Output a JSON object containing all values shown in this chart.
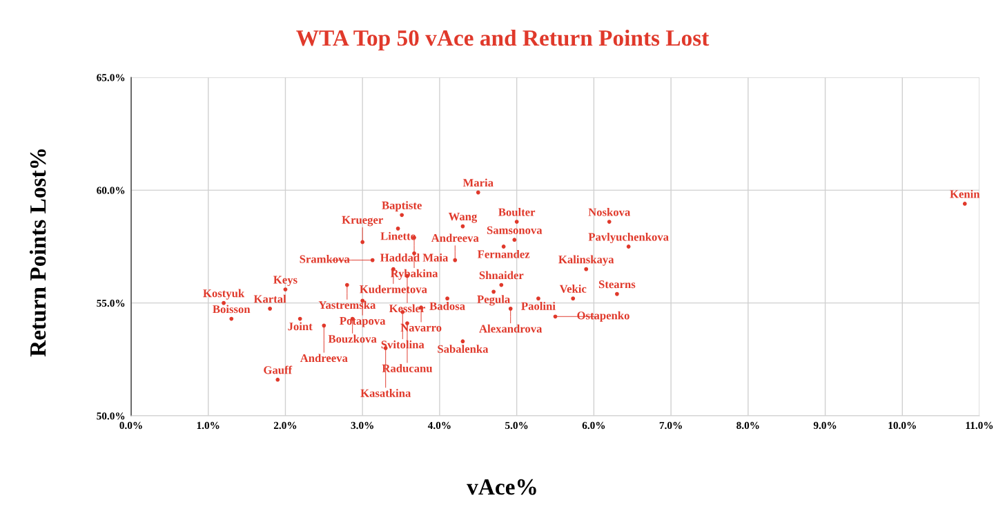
{
  "chart_data": {
    "type": "scatter",
    "title": "WTA Top 50 vAce and Return Points Lost",
    "xlabel": "vAce%",
    "ylabel": "Return Points Lost%",
    "xlim": [
      0,
      11
    ],
    "ylim": [
      50,
      65
    ],
    "xticks": [
      {
        "value": 0,
        "label": "0.0%"
      },
      {
        "value": 1,
        "label": "1.0%"
      },
      {
        "value": 2,
        "label": "2.0%"
      },
      {
        "value": 3,
        "label": "3.0%"
      },
      {
        "value": 4,
        "label": "4.0%"
      },
      {
        "value": 5,
        "label": "5.0%"
      },
      {
        "value": 6,
        "label": "6.0%"
      },
      {
        "value": 7,
        "label": "7.0%"
      },
      {
        "value": 8,
        "label": "8.0%"
      },
      {
        "value": 9,
        "label": "9.0%"
      },
      {
        "value": 10,
        "label": "10.0%"
      },
      {
        "value": 11,
        "label": "11.0%"
      }
    ],
    "yticks": [
      {
        "value": 50,
        "label": "50.0%"
      },
      {
        "value": 55,
        "label": "55.0%"
      },
      {
        "value": 60,
        "label": "60.0%"
      },
      {
        "value": 65,
        "label": "65.0%"
      }
    ],
    "grid": true,
    "legend": false,
    "marker": "circle",
    "series": [
      {
        "color": "#e0392b",
        "x": [
          4.5,
          10.81,
          3.51,
          5.0,
          6.2,
          3.46,
          4.3,
          3.67,
          4.97,
          3.0,
          4.83,
          6.45,
          3.67,
          3.13,
          4.2,
          5.9,
          3.4,
          3.58,
          2.8,
          2.0,
          4.8,
          4.7,
          6.3,
          5.28,
          5.73,
          4.1,
          3.0,
          1.2,
          1.8,
          3.76,
          4.92,
          3.52,
          5.5,
          1.3,
          2.19,
          2.87,
          2.5,
          3.58,
          4.3,
          3.3,
          1.9
        ],
        "values": [
          59.9,
          59.4,
          58.9,
          58.6,
          58.6,
          58.3,
          58.4,
          57.9,
          57.8,
          57.7,
          57.5,
          57.5,
          57.2,
          56.9,
          56.9,
          56.5,
          56.5,
          56.2,
          55.8,
          55.6,
          55.8,
          55.5,
          55.4,
          55.2,
          55.2,
          55.2,
          55.1,
          55.0,
          54.75,
          54.8,
          54.75,
          54.6,
          54.4,
          54.3,
          54.3,
          54.3,
          54.0,
          54.1,
          53.3,
          53.0,
          51.6
        ],
        "value_labels": [
          "Maria",
          "Kenin",
          "Baptiste",
          "Boulter",
          "Noskova",
          "Linette",
          "Wang",
          "Haddad Maia",
          "Samsonova",
          "Krueger",
          "Fernandez",
          "Pavlyuchenkova",
          "Rybakina",
          "Sramkova",
          "Andreeva",
          "Kalinskaya",
          "Kudermetova",
          "Kessler",
          "Yastremska",
          "Keys",
          "Shnaider",
          "Pegula",
          "Stearns",
          "Paolini",
          "Vekic",
          "Badosa",
          "Potapova",
          "Kostyuk",
          "Kartal",
          "Navarro",
          "Alexandrova",
          "Svitolina",
          "Ostapenko",
          "Boisson",
          "Joint",
          "Bouzkova",
          "Andreeva",
          "Raducanu",
          "Sabalenka",
          "Kasatkina",
          "Gauff"
        ]
      }
    ]
  }
}
